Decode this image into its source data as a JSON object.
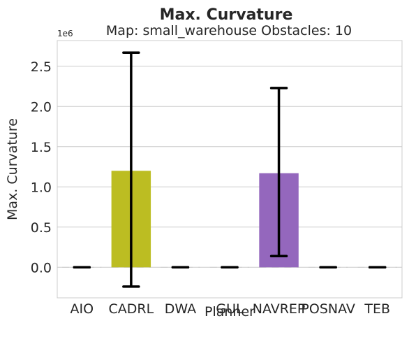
{
  "chart_data": {
    "type": "bar",
    "title": "Max. Curvature",
    "subtitle": "Map: small_warehouse Obstacles: 10",
    "xlabel": "Planner",
    "ylabel": "Max. Curvature",
    "offset_label": "1e6",
    "categories": [
      "AIO",
      "CADRL",
      "DWA",
      "GUL",
      "NAVREP",
      "POSNAV",
      "TEB"
    ],
    "values": [
      0,
      1.2,
      0,
      0,
      1.17,
      0,
      0
    ],
    "error_low": [
      0,
      -0.24,
      0,
      0,
      0.14,
      0,
      0
    ],
    "error_high": [
      0,
      2.67,
      0,
      0,
      2.23,
      0,
      0
    ],
    "colors": [
      "#1f77b4",
      "#bcbd22",
      "#7f7f7f",
      "#e377c2",
      "#9467bd",
      "#17becf",
      "#ff7f0e"
    ],
    "ylim": [
      -0.38,
      2.82
    ],
    "yticks": [
      0,
      0.5,
      1,
      1.5,
      2,
      2.5
    ],
    "ytick_labels": [
      "0.0",
      "0.5",
      "1.0",
      "1.5",
      "2.0",
      "2.5"
    ],
    "grid": true
  }
}
